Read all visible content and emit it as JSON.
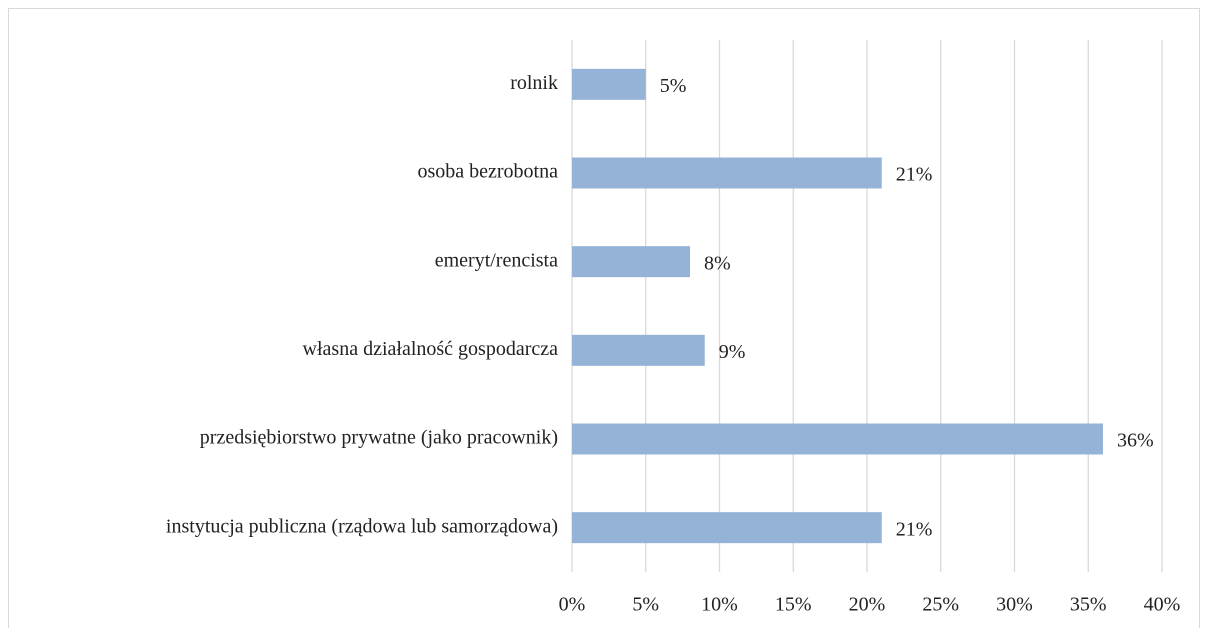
{
  "chart_data": {
    "type": "bar",
    "orientation": "horizontal",
    "categories": [
      "rolnik",
      "osoba bezrobotna",
      "emeryt/rencista",
      "własna działalność gospodarcza",
      "przedsiębiorstwo prywatne (jako pracownik)",
      "instytucja publiczna (rządowa lub samorządowa)"
    ],
    "values": [
      5,
      21,
      8,
      9,
      36,
      21
    ],
    "value_labels": [
      "5%",
      "21%",
      "8%",
      "9%",
      "36%",
      "21%"
    ],
    "color": "#95b3d7",
    "xlim": [
      0,
      40
    ],
    "xticks": [
      {
        "value": 0,
        "label": "0%"
      },
      {
        "value": 5,
        "label": "5%"
      },
      {
        "value": 10,
        "label": "10%"
      },
      {
        "value": 15,
        "label": "15%"
      },
      {
        "value": 20,
        "label": "20%"
      },
      {
        "value": 25,
        "label": "25%"
      },
      {
        "value": 30,
        "label": "30%"
      },
      {
        "value": 35,
        "label": "35%"
      },
      {
        "value": 40,
        "label": "40%"
      }
    ],
    "grid": true
  }
}
